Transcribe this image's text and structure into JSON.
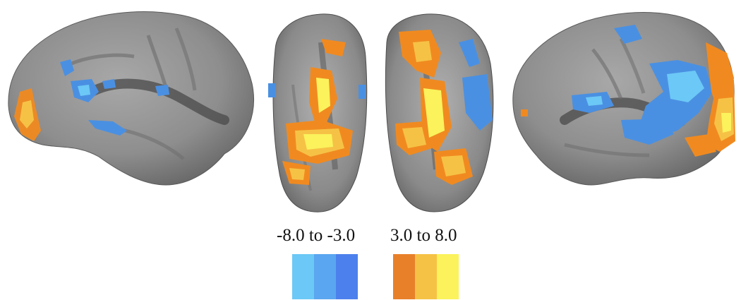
{
  "figure": {
    "panels": [
      "left-lateral-hemisphere",
      "ventral-left",
      "ventral-right",
      "right-lateral-hemisphere"
    ],
    "brain_color": "#8c8c8c",
    "negative_color": "#4a90e2",
    "positive_color": "#f08a20"
  },
  "legend": {
    "negative": {
      "label": "-8.0 to -3.0",
      "colors": [
        "#6cc8f6",
        "#5aa6f0",
        "#4c80ec"
      ]
    },
    "positive": {
      "label": "3.0 to 8.0",
      "colors": [
        "#e8802a",
        "#f6c246",
        "#fbf25c"
      ]
    }
  }
}
